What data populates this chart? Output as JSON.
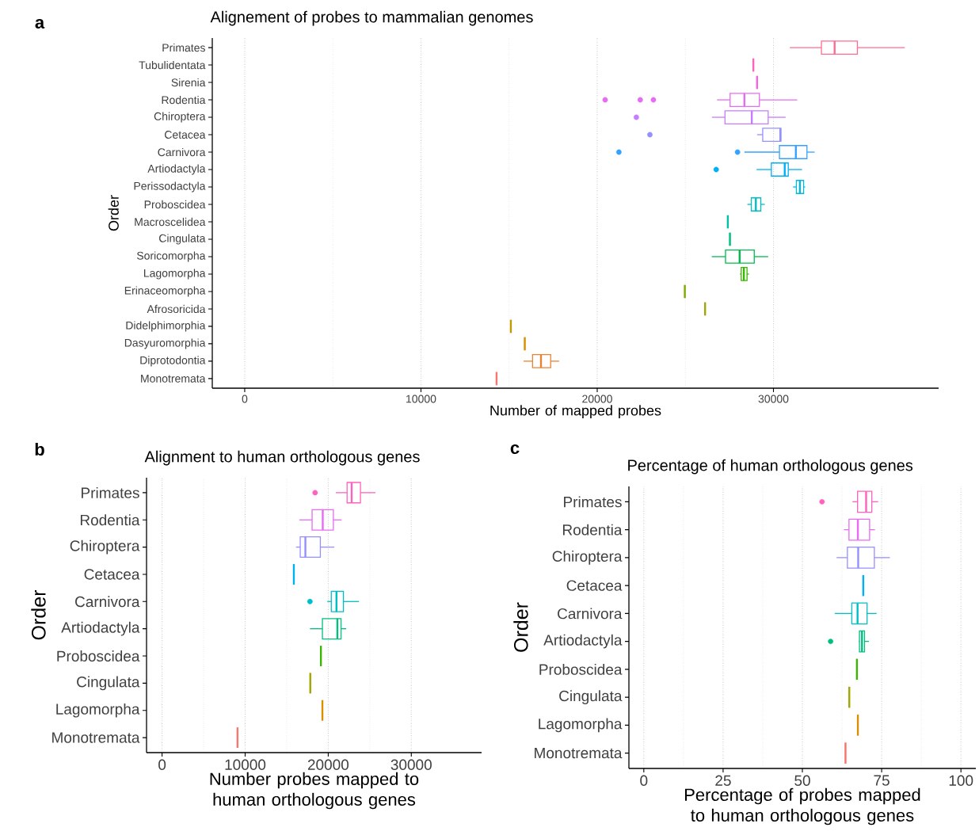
{
  "chart_data": [
    {
      "type": "box",
      "orientation": "horizontal",
      "title": "Alignement of probes to mammalian genomes",
      "xlabel": "Number of mapped probes",
      "ylabel": "Order",
      "annotations": [
        "a"
      ],
      "categories": [
        "Primates",
        "Tubulidentata",
        "Sirenia",
        "Rodentia",
        "Chiroptera",
        "Cetacea",
        "Carnivora",
        "Artiodactyla",
        "Perissodactyla",
        "Proboscidea",
        "Macroscelidea",
        "Cingulata",
        "Soricomorpha",
        "Lagomorpha",
        "Erinaceomorpha",
        "Afrosoricida",
        "Didelphimorphia",
        "Dasyuromorphia",
        "Diprotodontia",
        "Monotremata"
      ],
      "colors": [
        "#FF6C91",
        "#FF62BC",
        "#FA62DB",
        "#E76BF3",
        "#C77CFF",
        "#9590FF",
        "#35A2FF",
        "#00B0F6",
        "#00BAE0",
        "#00BFC4",
        "#00C1A3",
        "#00BF7D",
        "#00BB4E",
        "#39B600",
        "#7CAE00",
        "#A3A500",
        "#C09B00",
        "#D89000",
        "#EA8331",
        "#F8766D"
      ],
      "boxes": [
        {
          "low": 30930,
          "q1": 32720,
          "median": 33470,
          "q3": 34760,
          "high": 37450
        },
        {
          "low": 28860,
          "q1": 28860,
          "median": 28860,
          "q3": 28860,
          "high": 28860
        },
        {
          "low": 29070,
          "q1": 29070,
          "median": 29070,
          "q3": 29070,
          "high": 29070
        },
        {
          "low": 26800,
          "q1": 27540,
          "median": 28350,
          "q3": 29200,
          "high": 31350,
          "outliers": [
            20450,
            22440,
            23190
          ]
        },
        {
          "low": 26510,
          "q1": 27250,
          "median": 28770,
          "q3": 29700,
          "high": 30690,
          "outliers": [
            22220
          ]
        },
        {
          "low": 29070,
          "q1": 29390,
          "median": 30390,
          "q3": 30420,
          "high": 30420,
          "outliers": [
            22990
          ]
        },
        {
          "low": 28350,
          "q1": 30340,
          "median": 31270,
          "q3": 31900,
          "high": 32340,
          "outliers": [
            21230,
            27960
          ]
        },
        {
          "low": 29040,
          "q1": 29880,
          "median": 30640,
          "q3": 30840,
          "high": 31620,
          "outliers": [
            26750
          ]
        },
        {
          "low": 31110,
          "q1": 31300,
          "median": 31500,
          "q3": 31710,
          "high": 31800
        },
        {
          "low": 28520,
          "q1": 28740,
          "median": 29000,
          "q3": 29280,
          "high": 29510
        },
        {
          "low": 27410,
          "q1": 27410,
          "median": 27410,
          "q3": 27410,
          "high": 27410
        },
        {
          "low": 27530,
          "q1": 27530,
          "median": 27530,
          "q3": 27530,
          "high": 27530
        },
        {
          "low": 26500,
          "q1": 27280,
          "median": 28080,
          "q3": 28910,
          "high": 29700
        },
        {
          "low": 28100,
          "q1": 28170,
          "median": 28320,
          "q3": 28500,
          "high": 28610
        },
        {
          "low": 24970,
          "q1": 24970,
          "median": 24970,
          "q3": 24970,
          "high": 24970
        },
        {
          "low": 26120,
          "q1": 26120,
          "median": 26120,
          "q3": 26120,
          "high": 26120
        },
        {
          "low": 15100,
          "q1": 15100,
          "median": 15100,
          "q3": 15100,
          "high": 15100
        },
        {
          "low": 15890,
          "q1": 15890,
          "median": 15890,
          "q3": 15890,
          "high": 15890
        },
        {
          "low": 15820,
          "q1": 16330,
          "median": 16810,
          "q3": 17360,
          "high": 17840
        },
        {
          "low": 14290,
          "q1": 14290,
          "median": 14290,
          "q3": 14290,
          "high": 14290
        }
      ],
      "xlim": [
        -1840,
        39370
      ],
      "xticks": [
        0,
        10000,
        20000,
        30000
      ],
      "grid": "x"
    },
    {
      "type": "box",
      "orientation": "horizontal",
      "title": "Alignment to human orthologous genes",
      "xlabel": "Number probes mapped to human orthologous genes",
      "ylabel": "Order",
      "annotations": [
        "b"
      ],
      "categories": [
        "Primates",
        "Rodentia",
        "Chiroptera",
        "Cetacea",
        "Carnivora",
        "Artiodactyla",
        "Proboscidea",
        "Cingulata",
        "Lagomorpha",
        "Monotremata"
      ],
      "colors": [
        "#FF62BC",
        "#E76BF3",
        "#9590FF",
        "#00B0F6",
        "#00BFC4",
        "#00BF7D",
        "#39B600",
        "#A3A500",
        "#D89000",
        "#F8766D"
      ],
      "boxes": [
        {
          "low": 20920,
          "q1": 22270,
          "median": 22820,
          "q3": 23880,
          "high": 25680,
          "outliers": [
            18420
          ]
        },
        {
          "low": 16520,
          "q1": 18060,
          "median": 19340,
          "q3": 20620,
          "high": 21610
        },
        {
          "low": 16120,
          "q1": 16630,
          "median": 17250,
          "q3": 19050,
          "high": 20730
        },
        {
          "low": 15860,
          "q1": 15860,
          "median": 15860,
          "q3": 15860,
          "high": 15860
        },
        {
          "low": 19890,
          "q1": 20370,
          "median": 20990,
          "q3": 21830,
          "high": 23700,
          "outliers": [
            17800
          ]
        },
        {
          "low": 17800,
          "q1": 19300,
          "median": 21100,
          "q3": 21540,
          "high": 22160
        },
        {
          "low": 19120,
          "q1": 19120,
          "median": 19120,
          "q3": 19120,
          "high": 19120
        },
        {
          "low": 17840,
          "q1": 17840,
          "median": 17840,
          "q3": 17840,
          "high": 17840
        },
        {
          "low": 19300,
          "q1": 19300,
          "median": 19300,
          "q3": 19300,
          "high": 19300
        },
        {
          "low": 9080,
          "q1": 9080,
          "median": 9080,
          "q3": 9080,
          "high": 9080
        }
      ],
      "xlim": [
        -1870,
        38460
      ],
      "xticks": [
        0,
        10000,
        20000,
        30000
      ],
      "grid": "x"
    },
    {
      "type": "box",
      "orientation": "horizontal",
      "title": "Percentage of human orthologous genes",
      "xlabel": "Percentage of probes mapped to human orthologous genes",
      "ylabel": "Order",
      "annotations": [
        "c"
      ],
      "categories": [
        "Primates",
        "Rodentia",
        "Chiroptera",
        "Cetacea",
        "Carnivora",
        "Artiodactyla",
        "Proboscidea",
        "Cingulata",
        "Lagomorpha",
        "Monotremata"
      ],
      "colors": [
        "#FF62BC",
        "#E76BF3",
        "#9590FF",
        "#00B0F6",
        "#00BFC4",
        "#00BF7D",
        "#39B600",
        "#A3A500",
        "#D89000",
        "#F8766D"
      ],
      "boxes": [
        {
          "low": 65.8,
          "q1": 67.4,
          "median": 70.1,
          "q3": 71.9,
          "high": 73.9,
          "outliers": [
            56.2
          ]
        },
        {
          "low": 63.1,
          "q1": 64.7,
          "median": 67.5,
          "q3": 71.2,
          "high": 72.9
        },
        {
          "low": 60.8,
          "q1": 64.2,
          "median": 67.6,
          "q3": 72.7,
          "high": 77.6
        },
        {
          "low": 69.2,
          "q1": 69.2,
          "median": 69.2,
          "q3": 69.2,
          "high": 69.2
        },
        {
          "low": 60.2,
          "q1": 65.6,
          "median": 67.4,
          "q3": 70.4,
          "high": 73.4
        },
        {
          "low": 67.8,
          "q1": 68.0,
          "median": 68.8,
          "q3": 69.6,
          "high": 71.0,
          "outliers": [
            58.9
          ]
        },
        {
          "low": 67.2,
          "q1": 67.2,
          "median": 67.2,
          "q3": 67.2,
          "high": 67.2
        },
        {
          "low": 64.8,
          "q1": 64.8,
          "median": 64.8,
          "q3": 64.8,
          "high": 64.8
        },
        {
          "low": 67.5,
          "q1": 67.5,
          "median": 67.5,
          "q3": 67.5,
          "high": 67.5
        },
        {
          "low": 63.6,
          "q1": 63.6,
          "median": 63.6,
          "q3": 63.6,
          "high": 63.6
        }
      ],
      "xlim": [
        -4.7,
        104.7
      ],
      "xticks": [
        0,
        25,
        50,
        75,
        100
      ],
      "grid": "x"
    }
  ]
}
